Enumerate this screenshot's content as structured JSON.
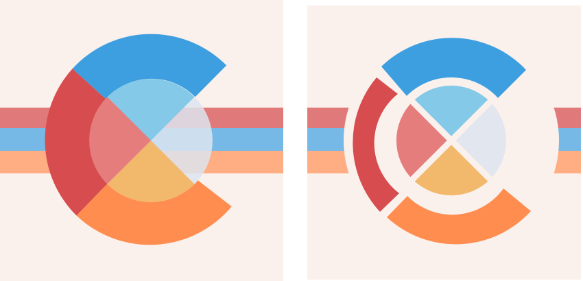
{
  "colors": {
    "page_background": "#ffffff",
    "panel_background": "#fbf1ec",
    "stripe_red": "#e07a7a",
    "stripe_blue": "#76b9e6",
    "stripe_orange": "#ffad82",
    "ring_blue": "#3d9fe0",
    "ring_red": "#d64c4f",
    "ring_orange": "#ff8d4f",
    "center_blue": "#84c9e8",
    "center_red": "#e57d7d",
    "center_orange": "#f2b86c",
    "center_right": "#dde4ee",
    "gap": "#fbf1ec"
  },
  "panels": [
    {
      "name": "logo-panel-overlapping",
      "separated": false
    },
    {
      "name": "logo-panel-separated",
      "separated": true
    }
  ]
}
